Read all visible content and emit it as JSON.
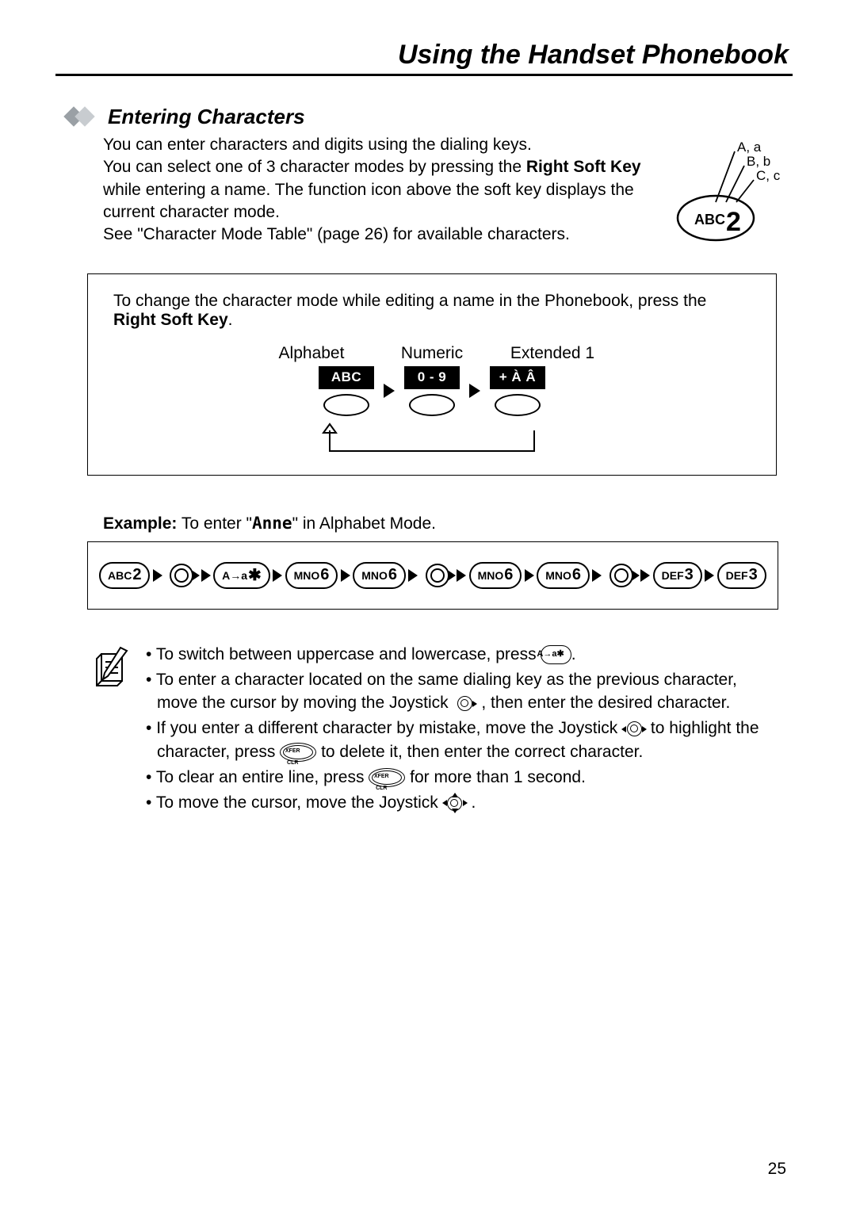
{
  "header": {
    "title": "Using the Handset Phonebook"
  },
  "section": {
    "title": "Entering Characters"
  },
  "intro": {
    "line1": "You can enter characters and digits using the dialing keys.",
    "line2a": "You can select one of 3 character modes by pressing the ",
    "line2b_bold": "Right Soft Key",
    "line2c": " while entering a name. The function icon above the soft key displays the current character mode.",
    "line3": "See \"Character Mode Table\" (page 26) for available characters."
  },
  "abc2": {
    "label_key": "ABC",
    "label_num": "2",
    "lines": [
      "A, a",
      "B, b",
      "C, c"
    ]
  },
  "modebox": {
    "text1": "To change the character mode while editing a name in the Phonebook, press the ",
    "text_bold": "Right Soft Key",
    "text_end": ".",
    "labels": [
      "Alphabet",
      "Numeric",
      "Extended 1"
    ],
    "screen_labels": [
      "ABC",
      "0 - 9",
      "+ À Â"
    ]
  },
  "example": {
    "prefix_bold": "Example:",
    "text": " To enter \"",
    "word": "Anne",
    "suffix": "\" in Alphabet Mode."
  },
  "keyseq": [
    {
      "type": "key",
      "small": "ABC",
      "big": "2"
    },
    {
      "type": "arrow"
    },
    {
      "type": "joy",
      "dir": "right"
    },
    {
      "type": "arrow"
    },
    {
      "type": "key",
      "small": "A→a",
      "big": "✱"
    },
    {
      "type": "arrow"
    },
    {
      "type": "key",
      "small": "MNO",
      "big": "6"
    },
    {
      "type": "arrow"
    },
    {
      "type": "key",
      "small": "MNO",
      "big": "6"
    },
    {
      "type": "arrow"
    },
    {
      "type": "joy",
      "dir": "right"
    },
    {
      "type": "arrow"
    },
    {
      "type": "key",
      "small": "MNO",
      "big": "6"
    },
    {
      "type": "arrow"
    },
    {
      "type": "key",
      "small": "MNO",
      "big": "6"
    },
    {
      "type": "arrow"
    },
    {
      "type": "joy",
      "dir": "right"
    },
    {
      "type": "arrow"
    },
    {
      "type": "key",
      "small": "DEF",
      "big": "3"
    },
    {
      "type": "arrow"
    },
    {
      "type": "key",
      "small": "DEF",
      "big": "3"
    }
  ],
  "tips": {
    "t1a": "To switch between uppercase and lowercase, press ",
    "t1key": "A→a✱",
    "t1b": ".",
    "t2a": "To enter a character located on the same dialing key as the previous character, move the cursor by moving the Joystick ",
    "t2b": " , then enter the desired character.",
    "t3a": "If you enter a different character by mistake, move the Joystick ",
    "t3b": " to highlight the character, press ",
    "t3c": " to delete it, then enter the correct character.",
    "t4a": "To clear an entire line, press ",
    "t4b": " for more than 1 second.",
    "t5a": "To move the cursor, move the Joystick ",
    "t5b": " .",
    "xfer_top": "XFER",
    "xfer_bot": "CLR"
  },
  "page_number": "25",
  "colors": {
    "text": "#000000",
    "background": "#ffffff",
    "diamond_dark": "#9aa0a5",
    "diamond_light": "#c8ccd0"
  }
}
